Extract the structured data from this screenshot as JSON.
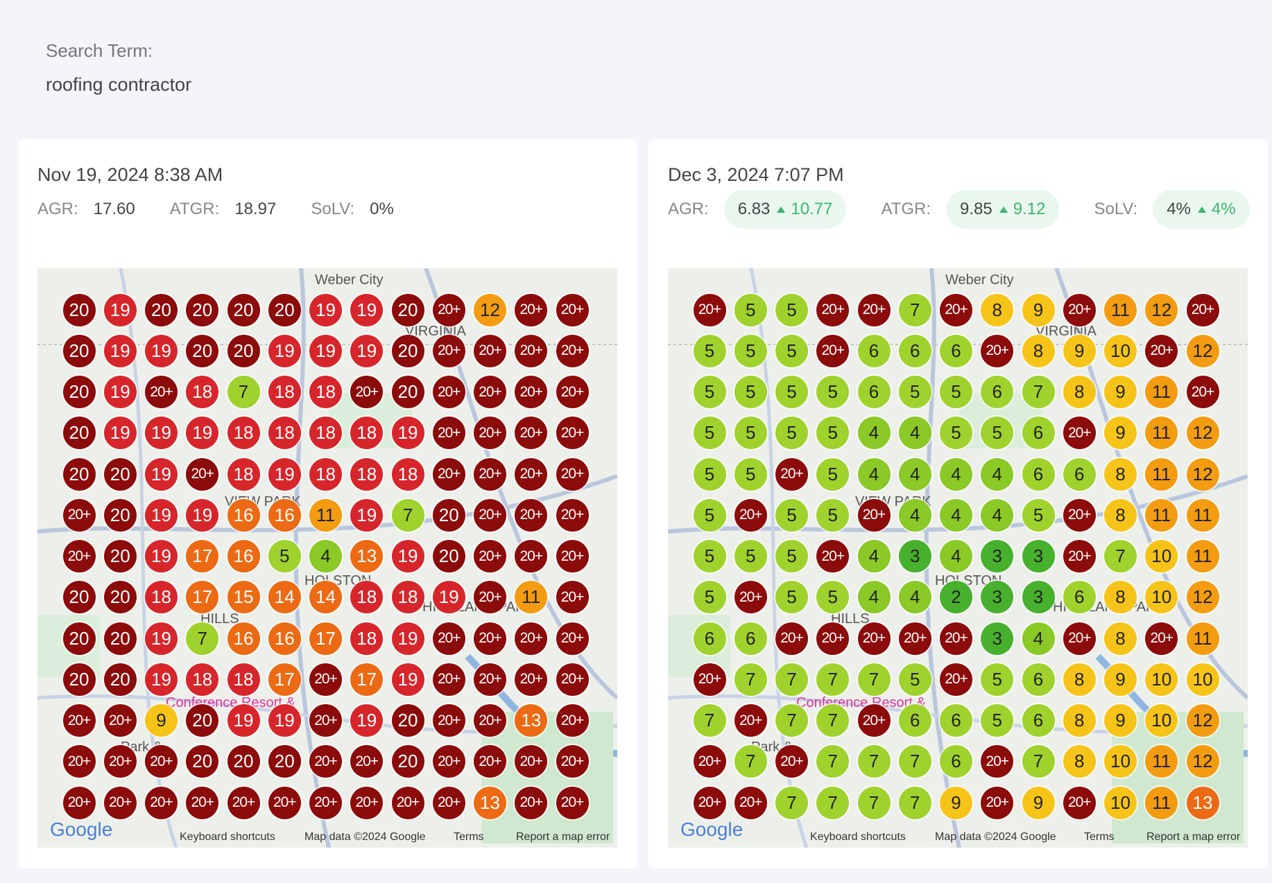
{
  "search": {
    "label": "Search Term:",
    "value": "roofing contractor"
  },
  "panels": [
    {
      "date": "Nov 19, 2024 8:38 AM",
      "metrics": [
        {
          "label": "AGR:",
          "value": "17.60"
        },
        {
          "label": "ATGR:",
          "value": "18.97"
        },
        {
          "label": "SoLV:",
          "value": "0%"
        }
      ],
      "map_labels": [
        "Weber City",
        "VIRGINIA",
        "VIEW PARK",
        "HOLSTON",
        "HILLS",
        "HIGHLAND PARK",
        "Conference Resort &",
        "Park &"
      ],
      "map_footer": [
        "Google",
        "Keyboard shortcuts",
        "Map data ©2024 Google",
        "Terms",
        "Report a map error"
      ],
      "grid": [
        [
          "20",
          "19",
          "20",
          "20",
          "20",
          "20",
          "19",
          "19",
          "20",
          "20+",
          "12",
          "20+",
          "20+"
        ],
        [
          "20",
          "19",
          "19",
          "20",
          "20",
          "19",
          "19",
          "19",
          "20",
          "20+",
          "20+",
          "20+",
          "20+"
        ],
        [
          "20",
          "19",
          "20+",
          "18",
          "7",
          "18",
          "18",
          "20+",
          "20",
          "20+",
          "20+",
          "20+",
          "20+"
        ],
        [
          "20",
          "19",
          "19",
          "19",
          "18",
          "18",
          "18",
          "18",
          "19",
          "20+",
          "20+",
          "20+",
          "20+"
        ],
        [
          "20",
          "20",
          "19",
          "20+",
          "18",
          "19",
          "18",
          "18",
          "18",
          "20+",
          "20+",
          "20+",
          "20+"
        ],
        [
          "20+",
          "20",
          "19",
          "19",
          "16",
          "16",
          "11",
          "19",
          "7",
          "20",
          "20+",
          "20+",
          "20+"
        ],
        [
          "20+",
          "20",
          "19",
          "17",
          "16",
          "5",
          "4",
          "13",
          "19",
          "20",
          "20+",
          "20+",
          "20+"
        ],
        [
          "20",
          "20",
          "18",
          "17",
          "15",
          "14",
          "14",
          "18",
          "18",
          "19",
          "20+",
          "11",
          "20+"
        ],
        [
          "20",
          "20",
          "19",
          "7",
          "16",
          "16",
          "17",
          "18",
          "19",
          "20+",
          "20+",
          "20+",
          "20+"
        ],
        [
          "20",
          "20",
          "19",
          "18",
          "18",
          "17",
          "20+",
          "17",
          "19",
          "20+",
          "20+",
          "20+",
          "20+"
        ],
        [
          "20+",
          "20+",
          "9",
          "20",
          "19",
          "19",
          "20+",
          "19",
          "20",
          "20+",
          "20+",
          "13",
          "20+"
        ],
        [
          "20+",
          "20+",
          "20+",
          "20",
          "20",
          "20",
          "20+",
          "20+",
          "20",
          "20+",
          "20+",
          "20+",
          "20+"
        ],
        [
          "20+",
          "20+",
          "20+",
          "20+",
          "20+",
          "20+",
          "20+",
          "20+",
          "20+",
          "20+",
          "13",
          "20+",
          "20+"
        ]
      ]
    },
    {
      "date": "Dec 3, 2024 7:07 PM",
      "metrics": [
        {
          "label": "AGR:",
          "value": "6.83",
          "delta": "10.77"
        },
        {
          "label": "ATGR:",
          "value": "9.85",
          "delta": "9.12"
        },
        {
          "label": "SoLV:",
          "value": "4%",
          "delta": "4%"
        }
      ],
      "map_labels": [
        "Weber City",
        "VIRGINIA",
        "VIEW PARK",
        "HOLSTON",
        "HILLS",
        "HIGHLAND PARK",
        "Conference Resort &",
        "Park &"
      ],
      "map_footer": [
        "Google",
        "Keyboard shortcuts",
        "Map data ©2024 Google",
        "Terms",
        "Report a map error"
      ],
      "grid": [
        [
          "20+",
          "5",
          "5",
          "20+",
          "20+",
          "7",
          "20+",
          "8",
          "9",
          "20+",
          "11",
          "12",
          "20+"
        ],
        [
          "5",
          "5",
          "5",
          "20+",
          "6",
          "6",
          "6",
          "20+",
          "8",
          "9",
          "10",
          "20+",
          "12"
        ],
        [
          "5",
          "5",
          "5",
          "5",
          "6",
          "5",
          "5",
          "6",
          "7",
          "8",
          "9",
          "11",
          "20+"
        ],
        [
          "5",
          "5",
          "5",
          "5",
          "4",
          "4",
          "5",
          "5",
          "6",
          "20+",
          "9",
          "11",
          "12"
        ],
        [
          "5",
          "5",
          "20+",
          "5",
          "4",
          "4",
          "4",
          "4",
          "6",
          "6",
          "8",
          "11",
          "12"
        ],
        [
          "5",
          "20+",
          "5",
          "5",
          "20+",
          "4",
          "4",
          "4",
          "5",
          "20+",
          "8",
          "11",
          "11"
        ],
        [
          "5",
          "5",
          "5",
          "20+",
          "4",
          "3",
          "4",
          "3",
          "3",
          "20+",
          "7",
          "10",
          "11"
        ],
        [
          "5",
          "20+",
          "5",
          "5",
          "4",
          "4",
          "2",
          "3",
          "3",
          "6",
          "8",
          "10",
          "12"
        ],
        [
          "6",
          "6",
          "20+",
          "20+",
          "20+",
          "20+",
          "20+",
          "3",
          "4",
          "20+",
          "8",
          "20+",
          "11"
        ],
        [
          "20+",
          "7",
          "7",
          "7",
          "7",
          "5",
          "20+",
          "5",
          "6",
          "8",
          "9",
          "10",
          "10"
        ],
        [
          "7",
          "20+",
          "7",
          "7",
          "20+",
          "6",
          "6",
          "5",
          "6",
          "8",
          "9",
          "10",
          "12"
        ],
        [
          "20+",
          "7",
          "20+",
          "7",
          "7",
          "7",
          "6",
          "20+",
          "7",
          "8",
          "10",
          "11",
          "12"
        ],
        [
          "20+",
          "20+",
          "7",
          "7",
          "7",
          "7",
          "9",
          "20+",
          "9",
          "20+",
          "10",
          "11",
          "13"
        ]
      ]
    }
  ]
}
